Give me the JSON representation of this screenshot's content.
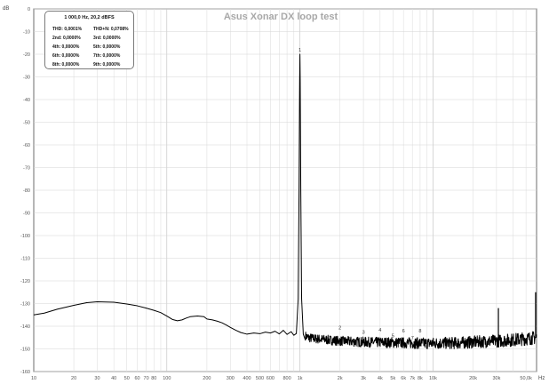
{
  "chart_data": {
    "type": "line",
    "title": "Asus Xonar DX loop test",
    "xscale": "log",
    "xlim": [
      10,
      60000
    ],
    "ylim": [
      -160,
      0
    ],
    "grid": true,
    "y_unit": "dB",
    "x_unit": "Hz",
    "y_ticks": [
      0,
      -10,
      -20,
      -30,
      -40,
      -50,
      -60,
      -70,
      -80,
      -90,
      -100,
      -110,
      -120,
      -130,
      -140,
      -150,
      -160
    ],
    "x_ticks": [
      {
        "v": 10,
        "label": "10"
      },
      {
        "v": 20,
        "label": "20"
      },
      {
        "v": 30,
        "label": "30"
      },
      {
        "v": 40,
        "label": "40"
      },
      {
        "v": 50,
        "label": "50"
      },
      {
        "v": 60,
        "label": "60"
      },
      {
        "v": 70,
        "label": "70"
      },
      {
        "v": 80,
        "label": "80"
      },
      {
        "v": 100,
        "label": "100"
      },
      {
        "v": 200,
        "label": "200"
      },
      {
        "v": 300,
        "label": "300"
      },
      {
        "v": 400,
        "label": "400"
      },
      {
        "v": 500,
        "label": "500"
      },
      {
        "v": 600,
        "label": "600"
      },
      {
        "v": 800,
        "label": "800"
      },
      {
        "v": 1000,
        "label": "1k"
      },
      {
        "v": 2000,
        "label": "2k"
      },
      {
        "v": 3000,
        "label": "3k"
      },
      {
        "v": 4000,
        "label": "4k"
      },
      {
        "v": 5000,
        "label": "5k"
      },
      {
        "v": 6000,
        "label": "6k"
      },
      {
        "v": 7000,
        "label": "7k"
      },
      {
        "v": 8000,
        "label": "8k"
      },
      {
        "v": 10000,
        "label": "10k"
      },
      {
        "v": 20000,
        "label": "20k"
      },
      {
        "v": 30000,
        "label": "30k"
      },
      {
        "v": 50000,
        "label": "50,0k"
      }
    ],
    "series": [
      {
        "color": "#000000",
        "points": [
          [
            10,
            -135
          ],
          [
            12,
            -134.2
          ],
          [
            15,
            -132.5
          ],
          [
            20,
            -130.8
          ],
          [
            25,
            -129.6
          ],
          [
            30,
            -129.2
          ],
          [
            40,
            -129.4
          ],
          [
            50,
            -130.2
          ],
          [
            60,
            -131
          ],
          [
            70,
            -132
          ],
          [
            80,
            -133
          ],
          [
            90,
            -134
          ],
          [
            100,
            -135.5
          ],
          [
            110,
            -137
          ],
          [
            120,
            -137.6
          ],
          [
            130,
            -137.2
          ],
          [
            140,
            -136.4
          ],
          [
            150,
            -135.8
          ],
          [
            170,
            -135.5
          ],
          [
            190,
            -135.8
          ],
          [
            200,
            -136.8
          ],
          [
            220,
            -137.2
          ],
          [
            240,
            -137.8
          ],
          [
            260,
            -138.5
          ],
          [
            280,
            -139.5
          ],
          [
            300,
            -140.5
          ],
          [
            330,
            -141.8
          ],
          [
            360,
            -142.8
          ],
          [
            400,
            -143.5
          ],
          [
            450,
            -143
          ],
          [
            500,
            -143.3
          ],
          [
            550,
            -142.6
          ],
          [
            600,
            -143
          ],
          [
            650,
            -142.2
          ],
          [
            700,
            -143.4
          ],
          [
            750,
            -141.8
          ],
          [
            800,
            -143.6
          ],
          [
            860,
            -142.4
          ],
          [
            900,
            -144
          ],
          [
            940,
            -143.2
          ],
          [
            970,
            -128
          ],
          [
            985,
            -80
          ],
          [
            995,
            -32
          ],
          [
            1000,
            -20
          ],
          [
            1005,
            -32
          ],
          [
            1015,
            -80
          ],
          [
            1030,
            -128
          ],
          [
            1060,
            -143.5
          ],
          [
            1150,
            -145
          ],
          [
            1300,
            -145.5
          ],
          [
            1600,
            -146
          ],
          [
            2000,
            -146.5
          ],
          [
            3000,
            -147
          ],
          [
            5000,
            -147.2
          ],
          [
            8000,
            -147.5
          ],
          [
            10000,
            -147.5
          ],
          [
            15000,
            -147.4
          ],
          [
            20000,
            -147
          ],
          [
            30000,
            -146.5
          ],
          [
            40000,
            -146
          ],
          [
            50000,
            -145.5
          ],
          [
            60000,
            -145
          ]
        ]
      }
    ],
    "noise_floor": {
      "from": 1100,
      "to": 60000,
      "level": -147,
      "spread": 4
    },
    "spurs": [
      {
        "x": 31000,
        "y": -132
      },
      {
        "x": 59000,
        "y": -125
      }
    ],
    "annotations": [
      {
        "x": 1000,
        "y": -20,
        "label": "1"
      },
      {
        "x": 2000,
        "y": -142.5,
        "label": "2"
      },
      {
        "x": 3000,
        "y": -144.5,
        "label": "3"
      },
      {
        "x": 4000,
        "y": -143.5,
        "label": "4"
      },
      {
        "x": 5000,
        "y": -146,
        "label": "5"
      },
      {
        "x": 6000,
        "y": -144,
        "label": "6"
      },
      {
        "x": 7000,
        "y": -147,
        "label": "7"
      },
      {
        "x": 8000,
        "y": -144,
        "label": "8"
      }
    ],
    "info_box": {
      "heading": "1 000,0 Hz,  20,2 dBFS",
      "rows": [
        [
          "THD: 0,0001%",
          "THD+N: 0,0708%"
        ],
        [
          "2nd: 0,0000%",
          "3rd: 0,0000%"
        ],
        [
          "4th: 0,0000%",
          "5th: 0,0000%"
        ],
        [
          "6th: 0,0000%",
          "7th: 0,0000%"
        ],
        [
          "8th: 0,0000%",
          "9th: 0,0000%"
        ]
      ]
    }
  }
}
